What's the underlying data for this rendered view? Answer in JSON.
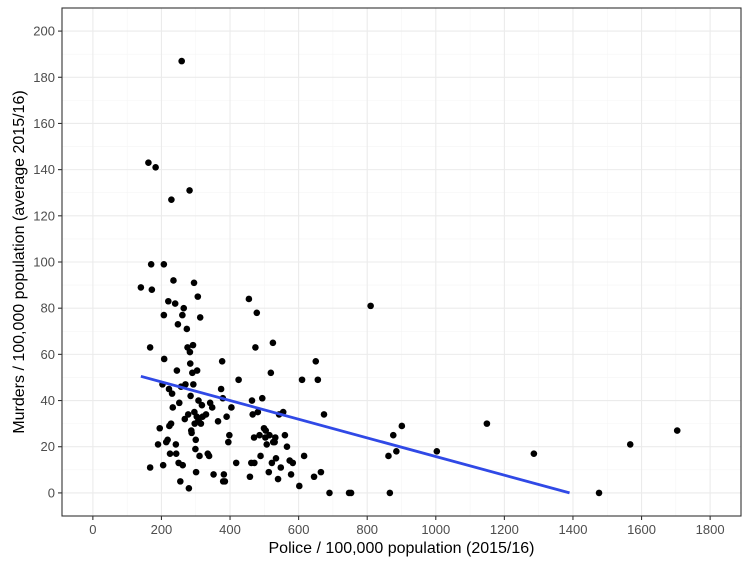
{
  "chart_data": {
    "type": "scatter",
    "title": "",
    "xlabel": "Police / 100,000 population (2015/16)",
    "ylabel": "Murders / 100,000 population (average 2015/16)",
    "xlim": [
      -90,
      1890
    ],
    "ylim": [
      -10,
      210
    ],
    "x_ticks": [
      0,
      200,
      400,
      600,
      800,
      1000,
      1200,
      1400,
      1600,
      1800
    ],
    "y_ticks": [
      0,
      20,
      40,
      60,
      80,
      100,
      120,
      140,
      160,
      180,
      200
    ],
    "grid": true,
    "legend": "none",
    "colors": {
      "points": "#000000",
      "fit_line": "#3049e6",
      "panel_border": "#333333",
      "grid_major": "#ebebeb",
      "grid_minor": "#f5f5f5"
    },
    "series": [
      {
        "points": [
          [
            140,
            89
          ],
          [
            162,
            143
          ],
          [
            167,
            63
          ],
          [
            170,
            99
          ],
          [
            172,
            88
          ],
          [
            183,
            141
          ],
          [
            167,
            11
          ],
          [
            190,
            21
          ],
          [
            195,
            28
          ],
          [
            203,
            47
          ],
          [
            205,
            12
          ],
          [
            207,
            99
          ],
          [
            207,
            77
          ],
          [
            208,
            58
          ],
          [
            214,
            22
          ],
          [
            218,
            23
          ],
          [
            220,
            83
          ],
          [
            222,
            45
          ],
          [
            223,
            29
          ],
          [
            225,
            17
          ],
          [
            228,
            30
          ],
          [
            229,
            127
          ],
          [
            231,
            43
          ],
          [
            233,
            37
          ],
          [
            235,
            92
          ],
          [
            240,
            82
          ],
          [
            242,
            21
          ],
          [
            243,
            17
          ],
          [
            245,
            53
          ],
          [
            248,
            73
          ],
          [
            250,
            13
          ],
          [
            252,
            39
          ],
          [
            255,
            5
          ],
          [
            257,
            46
          ],
          [
            259,
            187
          ],
          [
            261,
            77
          ],
          [
            262,
            12
          ],
          [
            265,
            80
          ],
          [
            268,
            32
          ],
          [
            270,
            47
          ],
          [
            274,
            71
          ],
          [
            276,
            63
          ],
          [
            278,
            34
          ],
          [
            280,
            2
          ],
          [
            282,
            131
          ],
          [
            283,
            61
          ],
          [
            284,
            56
          ],
          [
            285,
            42
          ],
          [
            287,
            27
          ],
          [
            288,
            26
          ],
          [
            290,
            52
          ],
          [
            292,
            64
          ],
          [
            293,
            47
          ],
          [
            295,
            91
          ],
          [
            296,
            35
          ],
          [
            297,
            30
          ],
          [
            299,
            19
          ],
          [
            300,
            23
          ],
          [
            301,
            9
          ],
          [
            303,
            33
          ],
          [
            304,
            53
          ],
          [
            306,
            85
          ],
          [
            307,
            31
          ],
          [
            308,
            40
          ],
          [
            309,
            31
          ],
          [
            311,
            16
          ],
          [
            313,
            76
          ],
          [
            315,
            30
          ],
          [
            318,
            38
          ],
          [
            320,
            33
          ],
          [
            330,
            34
          ],
          [
            335,
            17
          ],
          [
            339,
            16
          ],
          [
            342,
            39
          ],
          [
            348,
            37
          ],
          [
            352,
            8
          ],
          [
            365,
            31
          ],
          [
            374,
            45
          ],
          [
            377,
            57
          ],
          [
            379,
            41
          ],
          [
            380,
            5
          ],
          [
            382,
            8
          ],
          [
            385,
            5
          ],
          [
            390,
            33
          ],
          [
            395,
            22
          ],
          [
            398,
            25
          ],
          [
            404,
            37
          ],
          [
            418,
            13
          ],
          [
            425,
            49
          ],
          [
            455,
            84
          ],
          [
            458,
            7
          ],
          [
            462,
            13
          ],
          [
            464,
            40
          ],
          [
            466,
            34
          ],
          [
            470,
            24
          ],
          [
            471,
            13
          ],
          [
            474,
            63
          ],
          [
            478,
            78
          ],
          [
            481,
            35
          ],
          [
            486,
            25
          ],
          [
            489,
            16
          ],
          [
            494,
            41
          ],
          [
            499,
            28
          ],
          [
            503,
            24
          ],
          [
            504,
            27
          ],
          [
            507,
            21
          ],
          [
            513,
            9
          ],
          [
            515,
            25
          ],
          [
            519,
            52
          ],
          [
            522,
            13
          ],
          [
            525,
            65
          ],
          [
            526,
            22
          ],
          [
            530,
            22
          ],
          [
            532,
            24
          ],
          [
            534,
            15
          ],
          [
            540,
            6
          ],
          [
            543,
            34
          ],
          [
            548,
            11
          ],
          [
            555,
            35
          ],
          [
            560,
            25
          ],
          [
            566,
            20
          ],
          [
            574,
            14
          ],
          [
            578,
            8
          ],
          [
            583,
            13
          ],
          [
            602,
            3
          ],
          [
            610,
            49
          ],
          [
            616,
            16
          ],
          [
            645,
            7
          ],
          [
            650,
            57
          ],
          [
            656,
            49
          ],
          [
            665,
            9
          ],
          [
            674,
            34
          ],
          [
            690,
            0
          ],
          [
            747,
            0
          ],
          [
            753,
            0
          ],
          [
            810,
            81
          ],
          [
            862,
            16
          ],
          [
            866,
            0
          ],
          [
            876,
            25
          ],
          [
            885,
            18
          ],
          [
            901,
            29
          ],
          [
            1003,
            18
          ],
          [
            1149,
            30
          ],
          [
            1286,
            17
          ],
          [
            1476,
            0
          ],
          [
            1567,
            21
          ],
          [
            1704,
            27
          ]
        ]
      }
    ],
    "fit_line": {
      "x": [
        140,
        1390
      ],
      "y": [
        50.5,
        0
      ]
    }
  }
}
